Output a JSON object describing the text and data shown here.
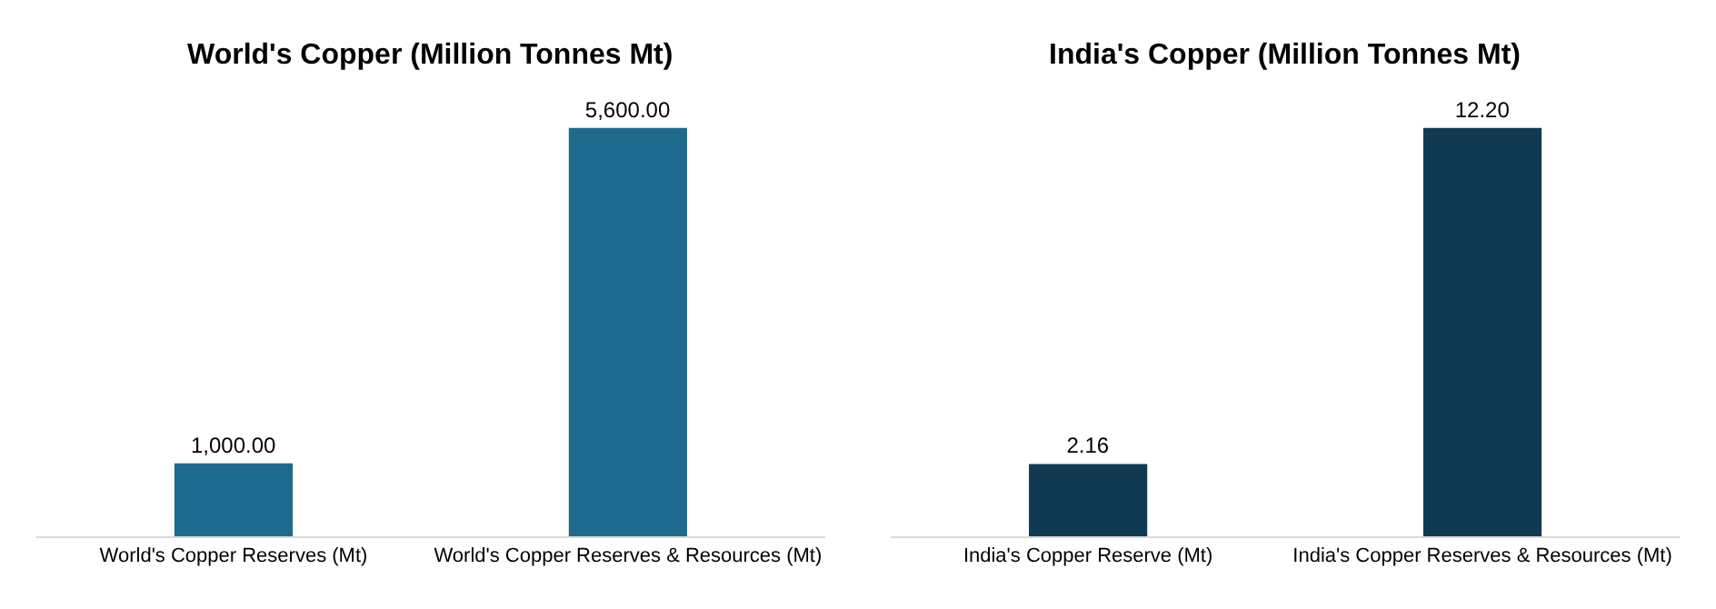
{
  "chart_data": [
    {
      "type": "bar",
      "title": "World's Copper (Million Tonnes Mt)",
      "categories": [
        "World's Copper Reserves (Mt)",
        "World's Copper Reserves & Resources (Mt)"
      ],
      "values": [
        1000,
        5600
      ],
      "value_labels": [
        "1,000.00",
        "5,600.00"
      ],
      "color": "#1e6a8e"
    },
    {
      "type": "bar",
      "title": "India's Copper (Million Tonnes Mt)",
      "categories": [
        "India's Copper Reserve (Mt)",
        "India's Copper Reserves & Resources (Mt)"
      ],
      "values": [
        2.16,
        12.2
      ],
      "value_labels": [
        "2.16",
        "12.20"
      ],
      "color": "#0f3a52"
    }
  ]
}
